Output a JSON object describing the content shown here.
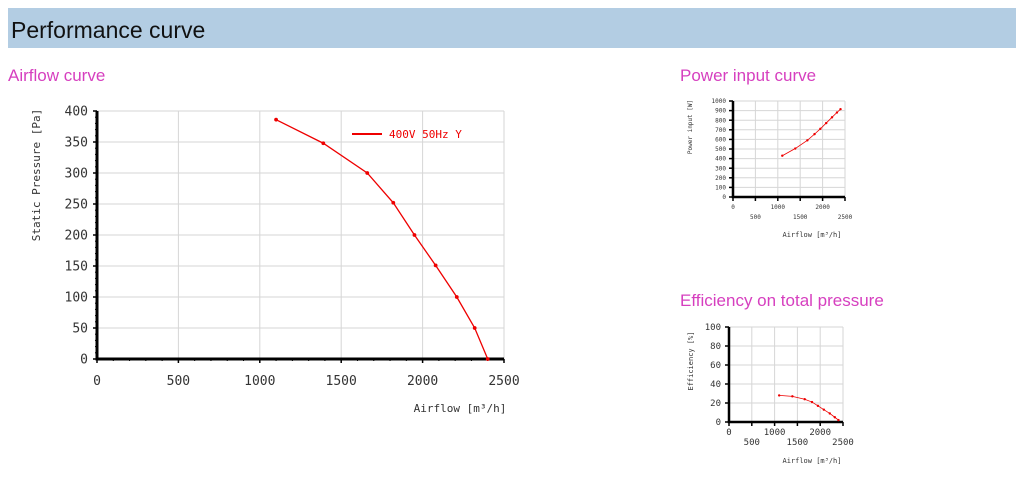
{
  "page": {
    "section_title": "Performance curve",
    "airflow_title": "Airflow curve",
    "power_title": "Power input curve",
    "efficiency_title": "Efficiency on total pressure"
  },
  "chart_data": [
    {
      "id": "airflow",
      "type": "line",
      "title": "Airflow curve",
      "xlabel": "Airflow [m³/h]",
      "ylabel": "Static Pressure [Pa]",
      "xlim": [
        0,
        2500
      ],
      "ylim": [
        0,
        400
      ],
      "xticks": [
        0,
        500,
        1000,
        1500,
        2000,
        2500
      ],
      "yticks": [
        0,
        50,
        100,
        150,
        200,
        250,
        300,
        350,
        400
      ],
      "grid": true,
      "legend": "top-right",
      "series": [
        {
          "name": "400V 50Hz Y",
          "color": "#ee0000",
          "x": [
            1100,
            1390,
            1660,
            1820,
            1950,
            2080,
            2210,
            2320,
            2400
          ],
          "y": [
            386,
            348,
            300,
            252,
            200,
            151,
            100,
            50,
            0
          ]
        }
      ]
    },
    {
      "id": "power",
      "type": "line",
      "title": "Power input curve",
      "xlabel": "Airflow [m³/h]",
      "ylabel": "Power input [W]",
      "xlim": [
        0,
        2500
      ],
      "ylim": [
        0,
        1000
      ],
      "xticks": [
        0,
        500,
        1000,
        1500,
        2000,
        2500
      ],
      "yticks": [
        0,
        100,
        200,
        300,
        400,
        500,
        600,
        700,
        800,
        900,
        1000
      ],
      "grid": true,
      "series": [
        {
          "color": "#ee0000",
          "x": [
            1100,
            1390,
            1660,
            1820,
            1950,
            2080,
            2210,
            2320,
            2400
          ],
          "y": [
            430,
            505,
            590,
            655,
            710,
            770,
            830,
            880,
            915
          ]
        }
      ]
    },
    {
      "id": "efficiency",
      "type": "line",
      "title": "Efficiency on total pressure",
      "xlabel": "Airflow [m³/h]",
      "ylabel": "Efficiency [%]",
      "xlim": [
        0,
        2500
      ],
      "ylim": [
        0,
        100
      ],
      "xticks": [
        0,
        500,
        1000,
        1500,
        2000,
        2500
      ],
      "yticks": [
        0,
        20,
        40,
        60,
        80,
        100
      ],
      "grid": true,
      "series": [
        {
          "color": "#ee0000",
          "x": [
            1100,
            1390,
            1660,
            1820,
            1950,
            2080,
            2210,
            2320,
            2400
          ],
          "y": [
            28,
            27,
            24,
            21,
            17,
            13,
            9,
            5,
            2
          ]
        }
      ]
    }
  ]
}
